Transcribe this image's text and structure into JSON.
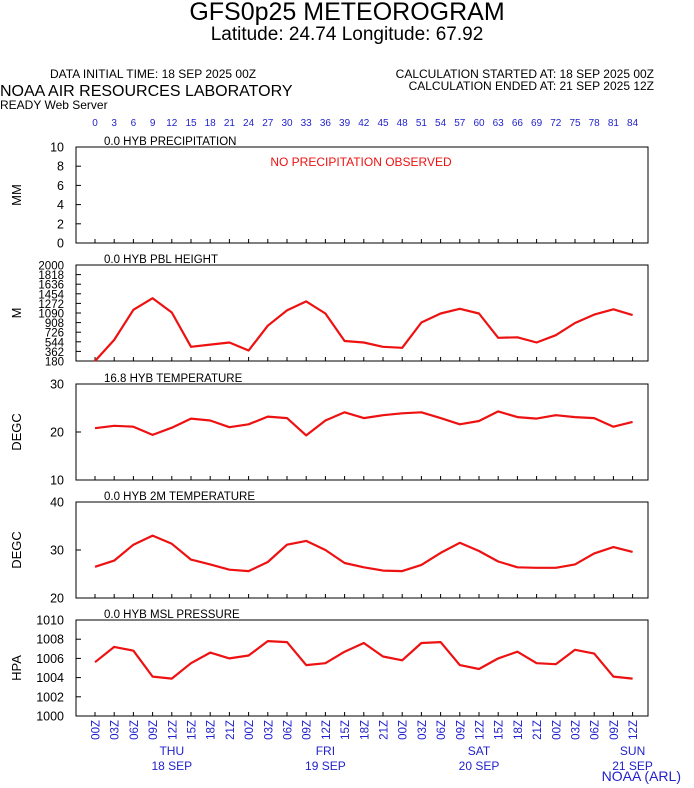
{
  "header": {
    "title": "GFS0p25 METEOROGRAM",
    "subtitle": "Latitude: 24.74 Longitude:  67.92",
    "initial_time": "DATA INITIAL TIME: 18 SEP 2025 00Z",
    "calc_started": "CALCULATION STARTED AT: 18 SEP 2025 00Z",
    "calc_ended": "CALCULATION ENDED AT: 21 SEP 2025 12Z",
    "lab": "NOAA AIR RESOURCES LABORATORY",
    "server": "READY Web Server"
  },
  "credit": "NOAA (ARL)",
  "colors": {
    "series": "#ee1111",
    "axis_labels": "#1f1fcc",
    "text": "#000000"
  },
  "chart_data": {
    "type": "line",
    "forecast_hours": [
      "0",
      "3",
      "6",
      "9",
      "12",
      "15",
      "18",
      "21",
      "24",
      "27",
      "30",
      "33",
      "36",
      "39",
      "42",
      "45",
      "48",
      "51",
      "54",
      "57",
      "60",
      "63",
      "66",
      "69",
      "72",
      "75",
      "78",
      "81",
      "84"
    ],
    "time_labels": [
      "00Z",
      "03Z",
      "06Z",
      "09Z",
      "12Z",
      "15Z",
      "18Z",
      "21Z",
      "00Z",
      "03Z",
      "06Z",
      "09Z",
      "12Z",
      "15Z",
      "18Z",
      "21Z",
      "00Z",
      "03Z",
      "06Z",
      "09Z",
      "12Z",
      "15Z",
      "18Z",
      "21Z",
      "00Z",
      "03Z",
      "06Z",
      "09Z",
      "12Z"
    ],
    "day_labels": [
      {
        "day": "THU",
        "date": "18 SEP",
        "index": 4
      },
      {
        "day": "FRI",
        "date": "19 SEP",
        "index": 12
      },
      {
        "day": "SAT",
        "date": "20 SEP",
        "index": 20
      },
      {
        "day": "SUN",
        "date": "21 SEP",
        "index": 28
      }
    ],
    "panels": [
      {
        "title": "0.0 HYB PRECIPITATION",
        "ylabel": "MM",
        "ylim": [
          0,
          10
        ],
        "yticks": [
          "0",
          "2",
          "4",
          "6",
          "8",
          "10"
        ],
        "ytick_values": [
          0,
          2,
          4,
          6,
          8,
          10
        ],
        "note": "NO PRECIPITATION OBSERVED",
        "values": []
      },
      {
        "title": "0.0 HYB PBL HEIGHT",
        "ylabel": "M",
        "ylim": [
          180,
          2000
        ],
        "yticks": [
          "180",
          "362",
          "544",
          "726",
          "908",
          "1090",
          "1272",
          "1454",
          "1636",
          "1818",
          "2000"
        ],
        "ytick_values": [
          180,
          362,
          544,
          726,
          908,
          1090,
          1272,
          1454,
          1636,
          1818,
          2000
        ],
        "note": "",
        "values": [
          180,
          580,
          1150,
          1370,
          1100,
          450,
          490,
          530,
          380,
          850,
          1140,
          1310,
          1080,
          560,
          530,
          450,
          430,
          910,
          1080,
          1170,
          1080,
          620,
          630,
          530,
          670,
          900,
          1060,
          1160,
          1050
        ]
      },
      {
        "title": "16.8 HYB TEMPERATURE",
        "ylabel": "DEGC",
        "ylim": [
          10,
          30
        ],
        "yticks": [
          "10",
          "20",
          "30"
        ],
        "ytick_values": [
          10,
          20,
          30
        ],
        "note": "",
        "values": [
          20.8,
          21.3,
          21.1,
          19.4,
          20.9,
          22.8,
          22.4,
          21.0,
          21.6,
          23.2,
          22.9,
          19.3,
          22.4,
          24.1,
          22.9,
          23.5,
          23.9,
          24.1,
          22.9,
          21.6,
          22.3,
          24.3,
          23.1,
          22.8,
          23.5,
          23.1,
          22.9,
          21.1,
          22.1
        ]
      },
      {
        "title": "0.0 HYB 2M TEMPERATURE",
        "ylabel": "DEGC",
        "ylim": [
          20,
          40
        ],
        "yticks": [
          "20",
          "30",
          "40"
        ],
        "ytick_values": [
          20,
          30,
          40
        ],
        "note": "",
        "values": [
          26.5,
          27.8,
          31.1,
          33.0,
          31.3,
          28.0,
          27.0,
          25.9,
          25.6,
          27.5,
          31.1,
          31.9,
          30.0,
          27.3,
          26.4,
          25.7,
          25.6,
          26.9,
          29.4,
          31.5,
          29.8,
          27.6,
          26.4,
          26.3,
          26.3,
          27.0,
          29.3,
          30.6,
          29.6
        ]
      },
      {
        "title": "0.0 HYB MSL PRESSURE",
        "ylabel": "HPA",
        "ylim": [
          1000,
          1010
        ],
        "yticks": [
          "1000",
          "1002",
          "1004",
          "1006",
          "1008",
          "1010"
        ],
        "ytick_values": [
          1000,
          1002,
          1004,
          1006,
          1008,
          1010
        ],
        "note": "",
        "values": [
          1005.6,
          1007.2,
          1006.8,
          1004.1,
          1003.9,
          1005.5,
          1006.6,
          1006.0,
          1006.3,
          1007.8,
          1007.7,
          1005.3,
          1005.5,
          1006.7,
          1007.6,
          1006.2,
          1005.8,
          1007.6,
          1007.7,
          1005.3,
          1004.9,
          1006.0,
          1006.7,
          1005.5,
          1005.4,
          1006.9,
          1006.5,
          1004.1,
          1003.9
        ]
      }
    ]
  }
}
